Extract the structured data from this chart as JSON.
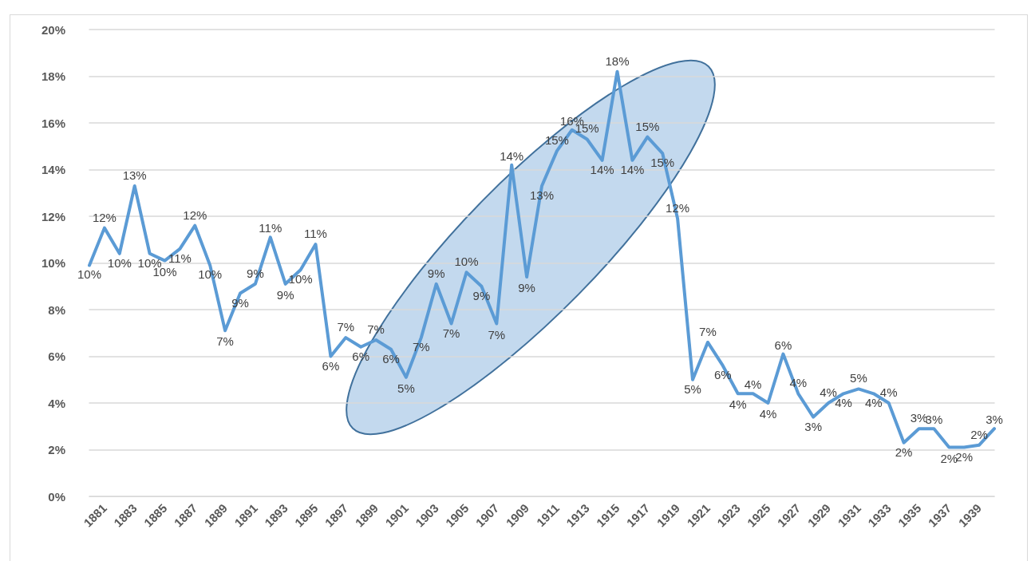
{
  "chart_data": {
    "type": "line",
    "categories": [
      null,
      "1881",
      null,
      "1883",
      null,
      "1885",
      null,
      "1887",
      null,
      "1889",
      null,
      "1891",
      null,
      "1893",
      null,
      "1895",
      null,
      "1897",
      null,
      "1899",
      null,
      "1901",
      null,
      "1903",
      null,
      "1905",
      null,
      "1907",
      null,
      "1909",
      null,
      "1911",
      null,
      "1913",
      null,
      "1915",
      null,
      "1917",
      null,
      "1919",
      null,
      "1921",
      null,
      "1923",
      null,
      "1925",
      null,
      "1927",
      null,
      "1929",
      null,
      "1931",
      null,
      "1933",
      null,
      "1935",
      null,
      "1937",
      null,
      "1939",
      null
    ],
    "series": [
      {
        "color": "#5b9bd5",
        "values": [
          9.9,
          11.5,
          10.4,
          13.3,
          10.4,
          10.1,
          10.6,
          11.6,
          9.9,
          7.1,
          8.7,
          9.1,
          11.1,
          9.1,
          9.7,
          10.8,
          6.0,
          6.8,
          6.4,
          6.7,
          6.3,
          5.1,
          6.8,
          9.1,
          7.4,
          9.6,
          9.0,
          7.4,
          14.2,
          9.4,
          13.3,
          14.8,
          15.7,
          15.3,
          14.4,
          18.2,
          14.4,
          15.4,
          14.7,
          11.9,
          5.0,
          6.6,
          5.6,
          4.4,
          4.4,
          4.0,
          6.1,
          4.4,
          3.4,
          4.0,
          4.4,
          4.6,
          4.4,
          4.0,
          2.3,
          2.9,
          2.9,
          2.1,
          2.1,
          2.2,
          2.9
        ],
        "value_labels": [
          "10%",
          "12%",
          "10%",
          "13%",
          "10%",
          "10%",
          "11%",
          "12%",
          "10%",
          "7%",
          "9%",
          "9%",
          "11%",
          "9%",
          "10%",
          "11%",
          "6%",
          "7%",
          "6%",
          "7%",
          "6%",
          "5%",
          "7%",
          "9%",
          "7%",
          "10%",
          "9%",
          "7%",
          "14%",
          "9%",
          "13%",
          "15%",
          "16%",
          "15%",
          "14%",
          "18%",
          "14%",
          "15%",
          "15%",
          "12%",
          "5%",
          "7%",
          "6%",
          "4%",
          "4%",
          "4%",
          "6%",
          "4%",
          "3%",
          "4%",
          "4%",
          "5%",
          "4%",
          "4%",
          "2%",
          "3%",
          "3%",
          "2%",
          "2%",
          "2%",
          "3%"
        ]
      }
    ],
    "ylim": [
      0,
      20
    ],
    "yticks": [
      {
        "value": 0,
        "label": "0%"
      },
      {
        "value": 2,
        "label": "2%"
      },
      {
        "value": 4,
        "label": "4%"
      },
      {
        "value": 6,
        "label": "6%"
      },
      {
        "value": 8,
        "label": "8%"
      },
      {
        "value": 10,
        "label": "10%"
      },
      {
        "value": 12,
        "label": "12%"
      },
      {
        "value": 14,
        "label": "14%"
      },
      {
        "value": 16,
        "label": "16%"
      },
      {
        "value": 18,
        "label": "18%"
      },
      {
        "value": 20,
        "label": "20%"
      }
    ],
    "grid": "y"
  }
}
